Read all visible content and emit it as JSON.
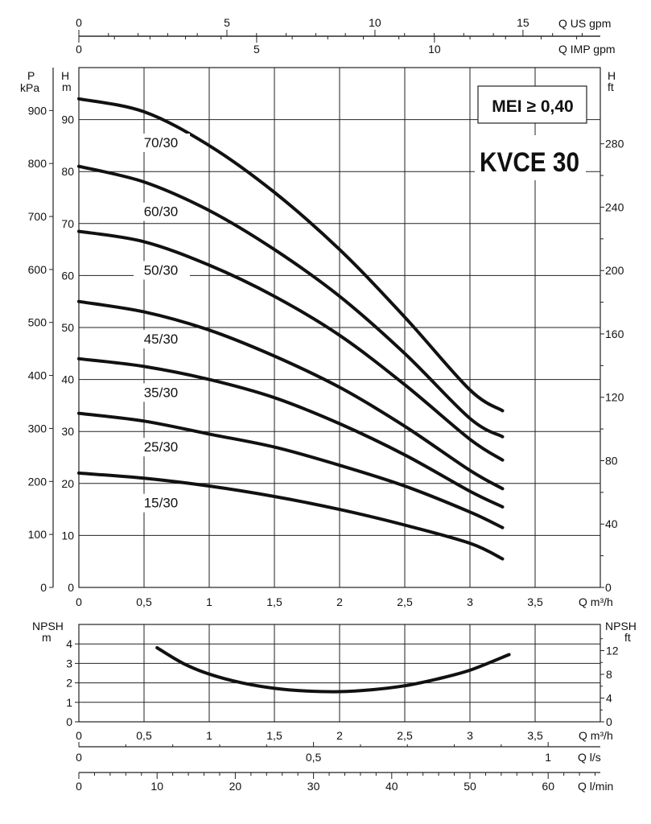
{
  "chart_data": [
    {
      "type": "line",
      "name": "performance",
      "x_unit_bottom": "Q m³/h",
      "x_unit_top1": "Q US gpm",
      "x_unit_top2": "Q IMP gpm",
      "y_unit_left_pressure": [
        "P",
        "kPa"
      ],
      "y_unit_left_head": [
        "H",
        "m"
      ],
      "y_unit_right_head": [
        "H",
        "ft"
      ],
      "xlim": [
        0,
        4
      ],
      "ylim": [
        0,
        100
      ],
      "grid": true,
      "x_ticks": [
        "0",
        "0,5",
        "1",
        "1,5",
        "2",
        "2,5",
        "3",
        "3,5"
      ],
      "x_tick_values": [
        0,
        0.5,
        1,
        1.5,
        2,
        2.5,
        3,
        3.5
      ],
      "y_ticks_m": [
        0,
        10,
        20,
        30,
        40,
        50,
        60,
        70,
        80,
        90
      ],
      "y_ticks_kpa": [
        0,
        100,
        200,
        300,
        400,
        500,
        600,
        700,
        800,
        900
      ],
      "y_ticks_ft": [
        0,
        40,
        80,
        120,
        160,
        200,
        240,
        280
      ],
      "top_ticks_us_gpm": [
        0,
        5,
        10,
        15
      ],
      "top_ticks_imp_gpm": [
        0,
        5,
        10
      ],
      "series": [
        {
          "name": "70/30",
          "x": [
            0,
            0.5,
            1,
            1.5,
            2,
            2.5,
            3,
            3.25
          ],
          "values": [
            94,
            91.5,
            85,
            76,
            65,
            52,
            38,
            34
          ]
        },
        {
          "name": "60/30",
          "x": [
            0,
            0.5,
            1,
            1.5,
            2,
            2.5,
            3,
            3.25
          ],
          "values": [
            81,
            78,
            72.5,
            65,
            56,
            45,
            32.5,
            29
          ]
        },
        {
          "name": "50/30",
          "x": [
            0,
            0.5,
            1,
            1.5,
            2,
            2.5,
            3,
            3.25
          ],
          "values": [
            68.5,
            66.5,
            62,
            56,
            48.5,
            39,
            28.5,
            24.5
          ]
        },
        {
          "name": "45/30",
          "x": [
            0,
            0.5,
            1,
            1.5,
            2,
            2.5,
            3,
            3.25
          ],
          "values": [
            55,
            53,
            49.5,
            44.5,
            38.5,
            31,
            22.5,
            19
          ]
        },
        {
          "name": "35/30",
          "x": [
            0,
            0.5,
            1,
            1.5,
            2,
            2.5,
            3,
            3.25
          ],
          "values": [
            44,
            42.5,
            40,
            36.5,
            31.5,
            25.5,
            18.5,
            15.5
          ]
        },
        {
          "name": "25/30",
          "x": [
            0,
            0.5,
            1,
            1.5,
            2,
            2.5,
            3,
            3.25
          ],
          "values": [
            33.5,
            32,
            29.5,
            27,
            23.5,
            19.5,
            14.5,
            11.5
          ]
        },
        {
          "name": "15/30",
          "x": [
            0,
            0.5,
            1,
            1.5,
            2,
            2.5,
            3,
            3.25
          ],
          "values": [
            22,
            21,
            19.5,
            17.5,
            15,
            12,
            8.5,
            5.5
          ]
        }
      ],
      "annotation_mei": "MEI ≥ 0,40",
      "annotation_model": "KVCE 30"
    },
    {
      "type": "line",
      "name": "npsh",
      "y_unit_left": [
        "NPSH",
        "m"
      ],
      "y_unit_right": [
        "NPSH",
        "ft"
      ],
      "x_unit": "Q m³/h",
      "xlim": [
        0,
        4
      ],
      "ylim": [
        0,
        5
      ],
      "y_ticks_m": [
        0,
        1,
        2,
        3,
        4
      ],
      "y_ticks_ft": [
        0,
        4,
        8,
        12
      ],
      "x_ticks": [
        "0",
        "0,5",
        "1",
        "1,5",
        "2",
        "2,5",
        "3",
        "3,5"
      ],
      "x_tick_values": [
        0,
        0.5,
        1,
        1.5,
        2,
        2.5,
        3,
        3.5
      ],
      "series": [
        {
          "x": [
            0.6,
            0.8,
            1,
            1.25,
            1.5,
            1.75,
            2,
            2.25,
            2.5,
            2.75,
            3,
            3.3
          ],
          "values": [
            3.8,
            3,
            2.45,
            2,
            1.72,
            1.58,
            1.55,
            1.65,
            1.85,
            2.2,
            2.65,
            3.45
          ]
        }
      ],
      "flow_scale_ls": {
        "label": "Q l/s",
        "ticks": [
          "0",
          "0,5",
          "1"
        ],
        "values": [
          0,
          0.5,
          1
        ]
      },
      "flow_scale_lmin": {
        "label": "Q l/min",
        "ticks": [
          0,
          10,
          20,
          30,
          40,
          50,
          60
        ],
        "values": [
          0,
          10,
          20,
          30,
          40,
          50,
          60
        ]
      }
    }
  ]
}
